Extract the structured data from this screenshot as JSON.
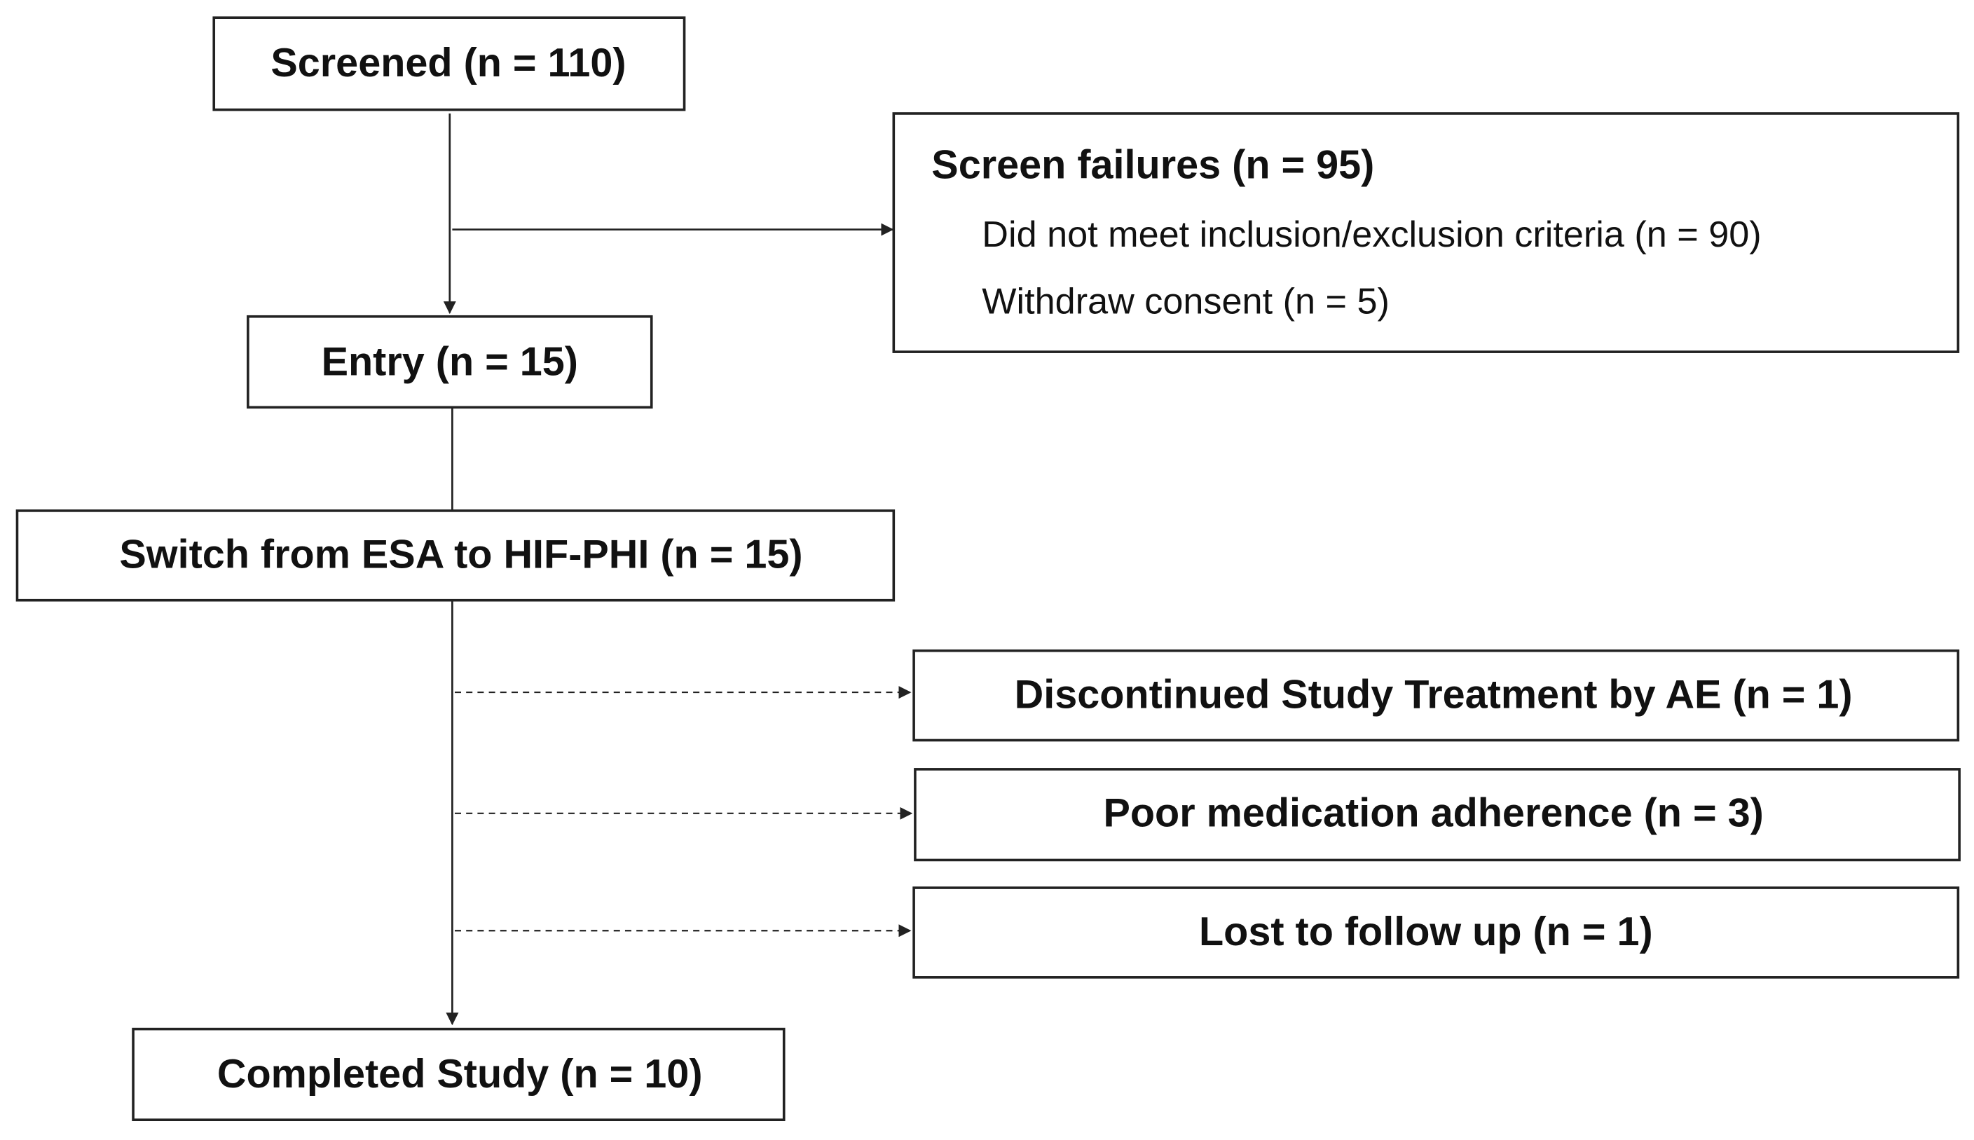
{
  "nodes": [
    {
      "label": "Screened (n = 110)"
    },
    {
      "label": "Entry (n = 15)"
    },
    {
      "label": "Switch from ESA to HIF-PHI (n = 15)"
    },
    {
      "label": "Completed Study (n = 10)"
    }
  ],
  "screen_failures": {
    "title": "Screen failures (n = 95)",
    "items": [
      "Did not meet inclusion/exclusion criteria (n = 90)",
      "Withdraw consent (n = 5)"
    ]
  },
  "exclusions": [
    "Discontinued Study Treatment by AE (n = 1)",
    "Poor medication adherence (n = 3)",
    "Lost to follow up (n = 1)"
  ]
}
